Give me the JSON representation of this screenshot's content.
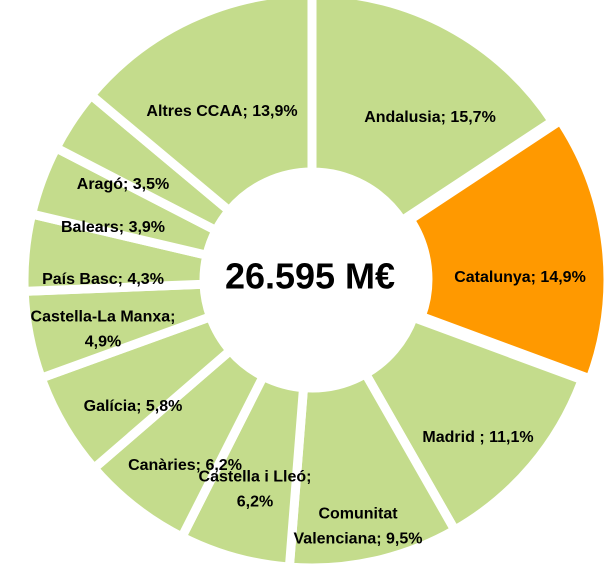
{
  "chart_data": {
    "type": "donut",
    "center_label": "26.595 M€",
    "categories": [
      "Andalusia",
      "Catalunya",
      "Madrid",
      "Comunitat Valenciana",
      "Castella i Lleó",
      "Canàries",
      "Galícia",
      "Castella-La Manxa",
      "País Basc",
      "Balears",
      "Aragó",
      "Altres CCAA"
    ],
    "values": [
      15.7,
      14.9,
      11.1,
      9.5,
      6.2,
      6.2,
      5.8,
      4.9,
      4.3,
      3.9,
      3.5,
      13.9
    ],
    "value_labels": [
      [
        "Andalusia; 15,7%"
      ],
      [
        "Catalunya; 14,9%"
      ],
      [
        "Madrid  ; 11,1%"
      ],
      [
        "Comunitat",
        "Valenciana; 9,5%"
      ],
      [
        "Castella i Lleó;",
        "6,2%"
      ],
      [
        "Canàries; 6,2%"
      ],
      [
        "Galícia; 5,8%"
      ],
      [
        "Castella-La Manxa;",
        "4,9%"
      ],
      [
        "País Basc; 4,3%"
      ],
      [
        "Balears; 3,9%"
      ],
      [
        "Aragó; 3,5%"
      ],
      [
        "Altres CCAA; 13,9%"
      ]
    ],
    "colors": [
      "#c4dc8c",
      "#ff9900",
      "#c4dc8c",
      "#c4dc8c",
      "#c4dc8c",
      "#c4dc8c",
      "#c4dc8c",
      "#c4dc8c",
      "#c4dc8c",
      "#c4dc8c",
      "#c4dc8c",
      "#c4dc8c"
    ]
  }
}
